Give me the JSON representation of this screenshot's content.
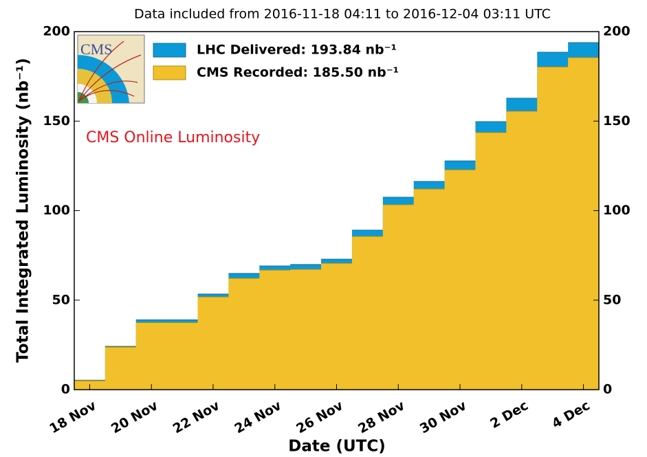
{
  "chart_data": {
    "type": "step-area",
    "title": "Data included from 2016-11-18 04:11 to 2016-12-04 03:11 UTC",
    "xlabel": "Date (UTC)",
    "ylabel": "Total Integrated Luminosity (nb⁻¹)",
    "annotation": "CMS Online Luminosity",
    "categories": [
      "18 Nov",
      null,
      "20 Nov",
      null,
      "22 Nov",
      null,
      "24 Nov",
      null,
      "26 Nov",
      null,
      "28 Nov",
      null,
      "30 Nov",
      null,
      "2 Dec",
      null,
      "4 Dec"
    ],
    "series": [
      {
        "name": "LHC Delivered: 193.84 nb⁻¹",
        "color": "#0b9ad7",
        "values": [
          5.3,
          24.2,
          39.0,
          39.0,
          53.4,
          64.9,
          69.1,
          69.9,
          72.9,
          89.1,
          107.5,
          116.3,
          127.8,
          149.7,
          162.8,
          188.5,
          193.84
        ]
      },
      {
        "name": "CMS Recorded: 185.50 nb⁻¹",
        "color": "#f1c02b",
        "values": [
          5.0,
          23.8,
          37.5,
          37.5,
          51.8,
          62.2,
          66.8,
          67.2,
          70.6,
          85.6,
          103.3,
          112.1,
          122.8,
          143.6,
          155.5,
          180.3,
          185.5
        ]
      }
    ],
    "ylim": [
      0,
      200
    ],
    "yticks": [
      0,
      50,
      100,
      150,
      200
    ]
  }
}
